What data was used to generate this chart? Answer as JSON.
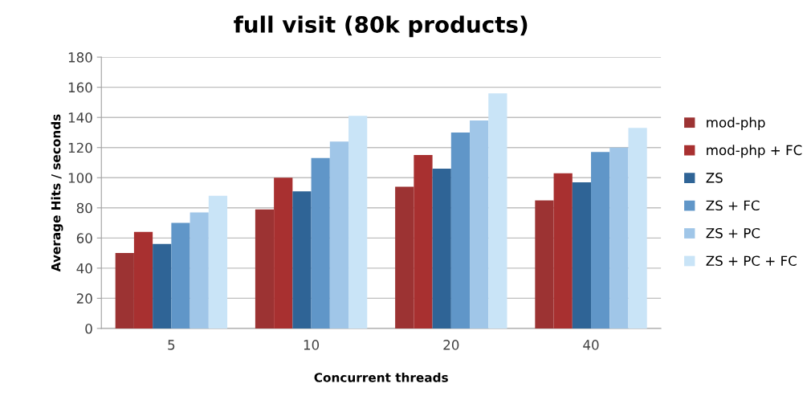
{
  "chart_data": {
    "type": "bar",
    "title": "full visit (80k products)",
    "xlabel": "Concurrent threads",
    "ylabel": "Average Hits / seconds",
    "categories": [
      "5",
      "10",
      "20",
      "40"
    ],
    "series": [
      {
        "name": "mod-php",
        "color": "#9c3333",
        "values": [
          50,
          79,
          94,
          85
        ]
      },
      {
        "name": "mod-php + FC",
        "color": "#a83030",
        "values": [
          64,
          100,
          115,
          103
        ]
      },
      {
        "name": "ZS",
        "color": "#2f6496",
        "values": [
          56,
          91,
          106,
          97
        ]
      },
      {
        "name": "ZS + FC",
        "color": "#6096c8",
        "values": [
          70,
          113,
          130,
          117
        ]
      },
      {
        "name": "ZS + PC",
        "color": "#a0c6e8",
        "values": [
          77,
          124,
          138,
          120
        ]
      },
      {
        "name": "ZS + PC + FC",
        "color": "#c9e4f7",
        "values": [
          88,
          141,
          156,
          133
        ]
      }
    ],
    "ylim": [
      0,
      180
    ],
    "yticks": [
      0,
      20,
      40,
      60,
      80,
      100,
      120,
      140,
      160,
      180
    ],
    "grid": "y",
    "legend": "right"
  }
}
